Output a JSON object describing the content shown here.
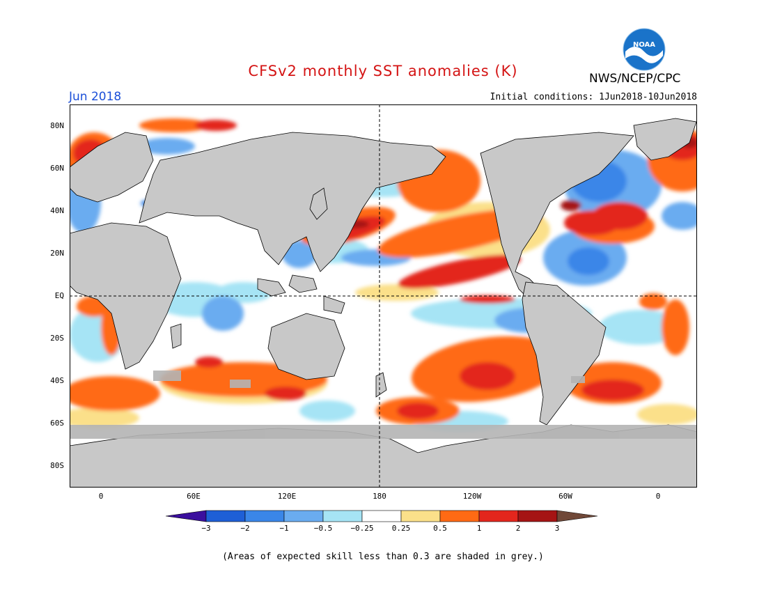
{
  "header": {
    "title": "CFSv2 monthly SST anomalies (K)",
    "month": "Jun 2018",
    "agency": "NWS/NCEP/CPC",
    "initial_conditions": "Initial conditions: 1Jun2018-10Jun2018",
    "logo_text": "NOAA",
    "logo_icon": "noaa-logo-icon"
  },
  "map": {
    "projection": "cylindrical-equidistant",
    "lat_labels": [
      "80N",
      "60N",
      "40N",
      "20N",
      "EQ",
      "20S",
      "40S",
      "60S",
      "80S"
    ],
    "lon_labels": [
      "0",
      "60E",
      "120E",
      "180",
      "120W",
      "60W",
      "0"
    ],
    "reference_lines": [
      "equator",
      "dateline"
    ],
    "land_color": "#c8c8c8",
    "low_skill_color": "#b4b4b4"
  },
  "colorbar": {
    "labels": [
      "−3",
      "−2",
      "−1",
      "−0.5",
      "−0.25",
      "0.25",
      "0.5",
      "1",
      "2",
      "3"
    ],
    "colors": [
      "#3b0f9e",
      "#1e5fd6",
      "#3a86e8",
      "#6aacf0",
      "#a6e4f5",
      "#ffffff",
      "#fbe08a",
      "#ff6a14",
      "#e3261d",
      "#a51414",
      "#704838"
    ]
  },
  "footnote": "(Areas of expected skill less than 0.3 are shaded in grey.)"
}
